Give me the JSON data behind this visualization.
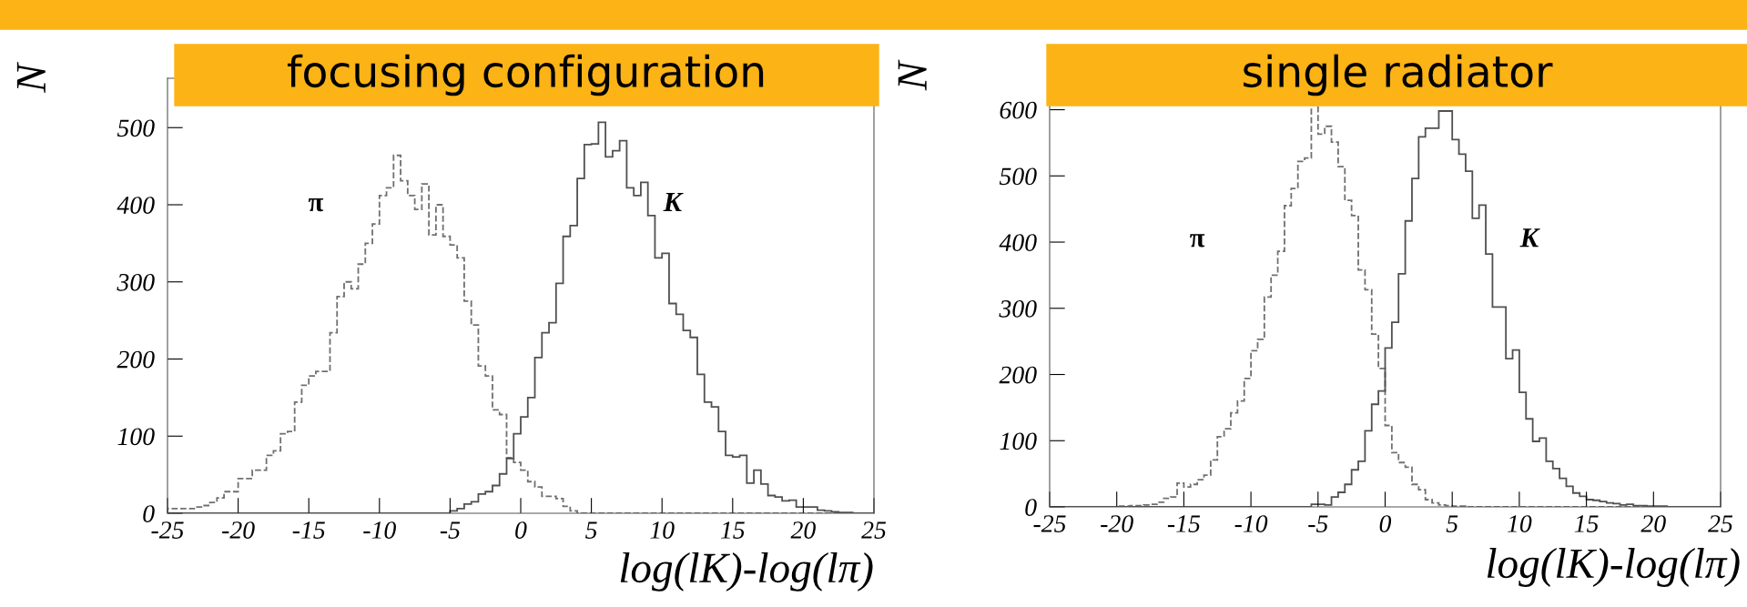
{
  "chart_data": [
    {
      "type": "histogram",
      "title": "focusing configuration",
      "ylabel": "N",
      "xlabel": "log(lK)-log(lπ)",
      "bins": [
        -25,
        -24.5,
        -24,
        -23.5,
        -23,
        -22.5,
        -22,
        -21.5,
        -21,
        -20.5,
        -20,
        -19.5,
        -19,
        -18.5,
        -18,
        -17.5,
        -17,
        -16.5,
        -16,
        -15.5,
        -15,
        -14.5,
        -14,
        -13.5,
        -13,
        -12.5,
        -12,
        -11.5,
        -11,
        -10.5,
        -10,
        -9.5,
        -9,
        -8.5,
        -8,
        -7.5,
        -7,
        -6.5,
        -6,
        -5.5,
        -5,
        -4.5,
        -4,
        -3.5,
        -3,
        -2.5,
        -2,
        -1.5,
        -1,
        -0.5,
        0,
        0.5,
        1,
        1.5,
        2,
        2.5,
        3,
        3.5,
        4,
        4.5,
        5,
        5.5,
        6,
        6.5,
        7,
        7.5,
        8,
        8.5,
        9,
        9.5,
        10,
        10.5,
        11,
        11.5,
        12,
        12.5,
        13,
        13.5,
        14,
        14.5,
        15,
        15.5,
        16,
        16.5,
        17,
        17.5,
        18,
        18.5,
        19,
        19.5,
        20,
        20.5,
        21,
        21.5,
        22,
        22.5,
        23,
        23.5,
        24,
        24.5,
        25
      ],
      "series": [
        {
          "color": "#707070",
          "line_style": "dashed",
          "values": [
            6,
            6,
            6,
            6,
            8,
            10,
            14,
            20,
            28,
            28,
            45,
            45,
            56,
            56,
            75,
            81,
            103,
            106,
            144,
            166,
            178,
            184,
            184,
            234,
            281,
            300,
            291,
            323,
            350,
            375,
            412,
            422,
            464,
            431,
            412,
            394,
            427,
            361,
            400,
            359,
            348,
            331,
            275,
            244,
            191,
            178,
            134,
            128,
            72,
            66,
            56,
            41,
            34,
            22,
            22,
            19,
            9,
            3,
            0,
            0,
            0,
            0,
            0,
            0,
            0,
            0,
            0,
            0,
            0,
            0,
            0,
            0,
            0,
            0,
            0,
            0,
            0,
            0,
            0,
            0,
            0,
            0,
            0,
            0,
            0,
            0,
            0,
            0,
            0,
            0,
            0,
            0,
            0,
            0,
            0,
            0,
            0,
            0,
            0,
            0
          ]
        },
        {
          "color": "#505050",
          "line_style": "solid",
          "values": [
            0,
            0,
            0,
            0,
            0,
            0,
            0,
            0,
            0,
            0,
            0,
            0,
            0,
            0,
            0,
            0,
            0,
            0,
            0,
            0,
            0,
            0,
            0,
            0,
            0,
            0,
            0,
            0,
            0,
            0,
            0,
            0,
            0,
            0,
            0,
            0,
            0,
            0,
            0,
            0,
            3,
            6,
            12,
            15,
            25,
            28,
            36,
            51,
            71,
            103,
            125,
            150,
            202,
            234,
            247,
            298,
            359,
            373,
            434,
            478,
            479,
            507,
            462,
            470,
            483,
            422,
            412,
            429,
            386,
            331,
            337,
            272,
            258,
            237,
            228,
            180,
            144,
            138,
            106,
            75,
            73,
            75,
            39,
            56,
            38,
            23,
            21,
            16,
            17,
            8,
            8,
            8,
            4,
            3,
            2,
            1,
            1,
            0,
            0,
            0
          ]
        }
      ],
      "xlim": [
        -25,
        25
      ],
      "ylim": [
        0,
        564
      ],
      "xticks": [
        -25,
        -20,
        -15,
        -10,
        -5,
        0,
        5,
        10,
        15,
        20,
        25
      ],
      "yticks": [
        0,
        100,
        200,
        300,
        400,
        500
      ],
      "annotations": [
        "π",
        "K"
      ]
    },
    {
      "type": "histogram",
      "title": "single radiator",
      "ylabel": "N",
      "xlabel": "log(lK)-log(lπ)",
      "bins": [
        -25,
        -24.5,
        -24,
        -23.5,
        -23,
        -22.5,
        -22,
        -21.5,
        -21,
        -20.5,
        -20,
        -19.5,
        -19,
        -18.5,
        -18,
        -17.5,
        -17,
        -16.5,
        -16,
        -15.5,
        -15,
        -14.5,
        -14,
        -13.5,
        -13,
        -12.5,
        -12,
        -11.5,
        -11,
        -10.5,
        -10,
        -9.5,
        -9,
        -8.5,
        -8,
        -7.5,
        -7,
        -6.5,
        -6,
        -5.5,
        -5,
        -4.5,
        -4,
        -3.5,
        -3,
        -2.5,
        -2,
        -1.5,
        -1,
        -0.5,
        0,
        0.5,
        1,
        1.5,
        2,
        2.5,
        3,
        3.5,
        4,
        4.5,
        5,
        5.5,
        6,
        6.5,
        7,
        7.5,
        8,
        8.5,
        9,
        9.5,
        10,
        10.5,
        11,
        11.5,
        12,
        12.5,
        13,
        13.5,
        14,
        14.5,
        15,
        15.5,
        16,
        16.5,
        17,
        17.5,
        18,
        18.5,
        19,
        19.5,
        20,
        20.5,
        21,
        21.5,
        22,
        22.5,
        23,
        23.5,
        24,
        24.5,
        25
      ],
      "series": [
        {
          "color": "#707070",
          "line_style": "dashed",
          "values": [
            0,
            0,
            0,
            0,
            0,
            0,
            0,
            0,
            0,
            0,
            1,
            1,
            2,
            2,
            3,
            4,
            7,
            13,
            15,
            36,
            30,
            34,
            41,
            48,
            71,
            106,
            118,
            142,
            160,
            194,
            236,
            253,
            317,
            350,
            386,
            455,
            481,
            522,
            527,
            607,
            563,
            575,
            551,
            514,
            463,
            440,
            358,
            328,
            261,
            209,
            123,
            82,
            67,
            60,
            34,
            26,
            11,
            6,
            3,
            2,
            1,
            1,
            0,
            0,
            0,
            0,
            0,
            0,
            0,
            0,
            0,
            0,
            0,
            0,
            0,
            0,
            0,
            0,
            0,
            0,
            0,
            0,
            0,
            0,
            0,
            0,
            0,
            0,
            0,
            0,
            0,
            0,
            0,
            0,
            0,
            0,
            0,
            0,
            0,
            0
          ]
        },
        {
          "color": "#505050",
          "line_style": "solid",
          "values": [
            0,
            0,
            0,
            0,
            0,
            0,
            0,
            0,
            0,
            0,
            0,
            0,
            0,
            0,
            0,
            0,
            0,
            0,
            0,
            0,
            0,
            0,
            0,
            0,
            0,
            0,
            0,
            0,
            0,
            0,
            0,
            0,
            0,
            0,
            0,
            0,
            0,
            0,
            0,
            4,
            4,
            3,
            15,
            22,
            34,
            56,
            69,
            115,
            155,
            175,
            240,
            279,
            352,
            432,
            496,
            559,
            572,
            572,
            598,
            598,
            555,
            533,
            507,
            436,
            456,
            382,
            302,
            302,
            224,
            237,
            173,
            133,
            99,
            104,
            69,
            58,
            43,
            31,
            21,
            16,
            11,
            10,
            8,
            6,
            5,
            3,
            4,
            2,
            2,
            1,
            1,
            1,
            0,
            0,
            0,
            0,
            0,
            0,
            0,
            0
          ]
        }
      ],
      "xlim": [
        -25,
        25
      ],
      "ylim": [
        0,
        620
      ],
      "xticks": [
        -25,
        -20,
        -15,
        -10,
        -5,
        0,
        5,
        10,
        15,
        20,
        25
      ],
      "yticks": [
        0,
        100,
        200,
        300,
        400,
        500,
        600
      ],
      "annotations": [
        "π",
        "K"
      ]
    }
  ]
}
